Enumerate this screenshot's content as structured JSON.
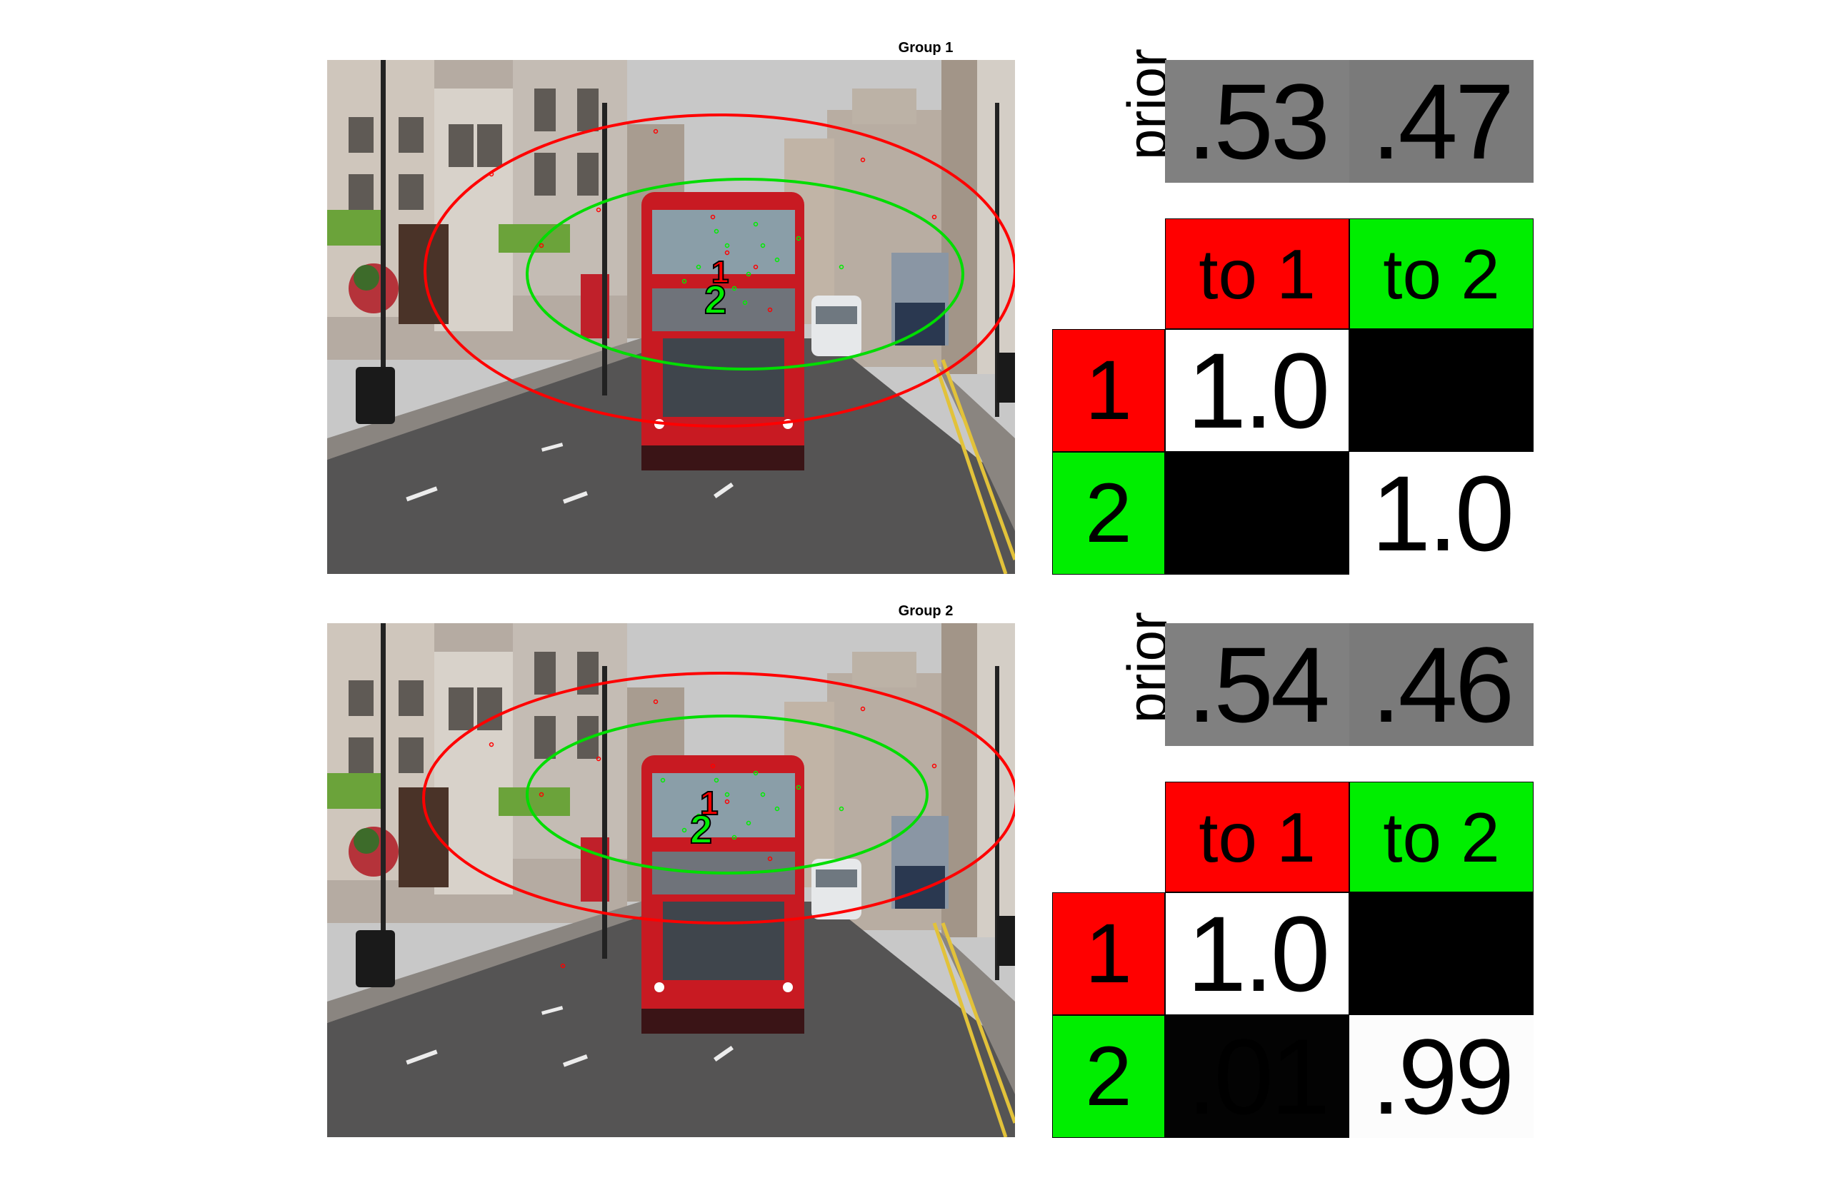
{
  "colors": {
    "state1": "#ff0000",
    "state2": "#00ee00",
    "prior": "#808080",
    "prior_light": "#8c8c8c",
    "prob_high": "#ffffff",
    "prob_low": "#000000"
  },
  "groups": [
    {
      "title": "Group 1",
      "prior_label": "prior",
      "prior_values": [
        ".53",
        ".47"
      ],
      "col_headers": [
        "to 1",
        "to 2"
      ],
      "row_headers": [
        "1",
        "2"
      ],
      "matrix": [
        [
          "1.0",
          ""
        ],
        [
          "",
          "1.0"
        ]
      ],
      "markers": [
        "1",
        "2"
      ]
    },
    {
      "title": "Group 2",
      "prior_label": "prior",
      "prior_values": [
        ".54",
        ".46"
      ],
      "col_headers": [
        "to 1",
        "to 2"
      ],
      "row_headers": [
        "1",
        "2"
      ],
      "matrix": [
        [
          "1.0",
          ""
        ],
        [
          ".01",
          ".99"
        ]
      ],
      "markers": [
        "1",
        "2"
      ]
    }
  ]
}
